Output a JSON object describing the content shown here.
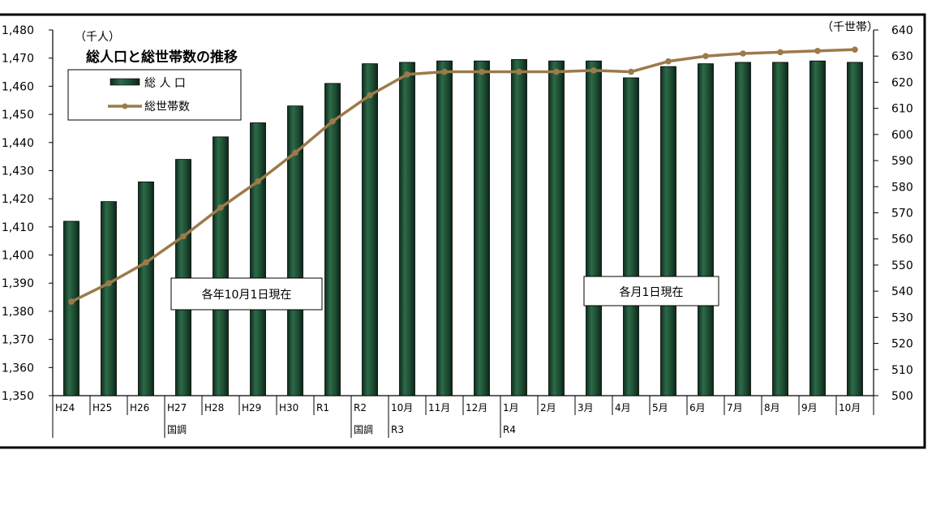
{
  "chart_data": {
    "type": "bar+line",
    "title": "総人口と総世帯数の推移",
    "ylabel_left_unit": "（千人）",
    "ylabel_right_unit": "（千世帯）",
    "ylim_left": [
      1350,
      1480
    ],
    "ylim_right": [
      500,
      640
    ],
    "yticks_left": [
      "1,350",
      "1,360",
      "1,370",
      "1,380",
      "1,390",
      "1,400",
      "1,410",
      "1,420",
      "1,430",
      "1,440",
      "1,450",
      "1,460",
      "1,470",
      "1,480"
    ],
    "yticks_right": [
      "500",
      "510",
      "520",
      "530",
      "540",
      "550",
      "560",
      "570",
      "580",
      "590",
      "600",
      "610",
      "620",
      "630",
      "640"
    ],
    "categories": [
      "H24",
      "H25",
      "H26",
      "H27",
      "H28",
      "H29",
      "H30",
      "R1",
      "R2",
      "10月",
      "11月",
      "12月",
      "1月",
      "2月",
      "3月",
      "4月",
      "5月",
      "6月",
      "7月",
      "8月",
      "9月",
      "10月"
    ],
    "category_sublabels": [
      "",
      "",
      "",
      "国調",
      "",
      "",
      "",
      "",
      "国調",
      "R3",
      "",
      "",
      "R4",
      "",
      "",
      "",
      "",
      "",
      "",
      "",
      "",
      ""
    ],
    "series": [
      {
        "name": "総 人 口",
        "type": "bar",
        "axis": "left",
        "color": "#1f4d33",
        "values": [
          1412,
          1419,
          1426,
          1434,
          1442,
          1447,
          1453,
          1461,
          1468,
          1468.5,
          1469,
          1469,
          1469.5,
          1469,
          1469,
          1463,
          1467,
          1468,
          1468.5,
          1468.5,
          1469,
          1468.5
        ]
      },
      {
        "name": "総世帯数",
        "type": "line",
        "axis": "right",
        "color": "#9c7a4a",
        "values": [
          536,
          543,
          551,
          561,
          572,
          582,
          593,
          605,
          615,
          623,
          624,
          624,
          624,
          624,
          624.5,
          624,
          628,
          630,
          631,
          631.5,
          632,
          632.5
        ]
      }
    ],
    "annotations": [
      "各年10月1日現在",
      "各月1日現在"
    ],
    "grid": false,
    "legend_position": "top-left"
  }
}
